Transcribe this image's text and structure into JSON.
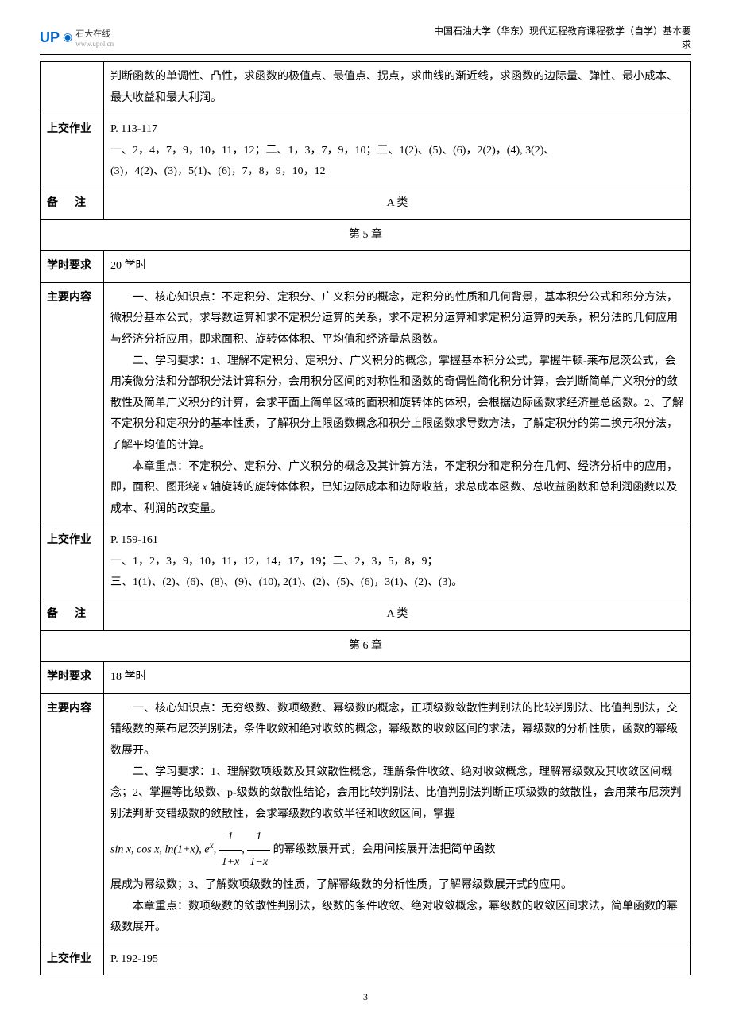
{
  "header": {
    "logo_main": "UP",
    "logo_tag": "石大在线",
    "logo_url": "www.upol.cn",
    "right_line1": "中国石油大学（华东）现代远程教育课程教学（自学）基本要",
    "right_line2": "求"
  },
  "rows": [
    {
      "type": "continuation",
      "content": "判断函数的单调性、凸性，求函数的极值点、最值点、拐点，求曲线的渐近线，求函数的边际量、弹性、最小成本、最大收益和最大利润。"
    },
    {
      "type": "labeled",
      "label": "上交作业",
      "lines": [
        "P. 113-117",
        "一、2，4，7，9，10，11，12；二、1，3，7，9，10；三、1(2)、(5)、(6)，2(2)，(4), 3(2)、",
        "(3)，4(2)、(3)，5(1)、(6)，7，8，9，10，12"
      ]
    },
    {
      "type": "labeled-center",
      "label": "备      注",
      "content": "A 类"
    },
    {
      "type": "chapter",
      "content": "第 5 章"
    },
    {
      "type": "labeled",
      "label": "学时要求",
      "lines": [
        "20 学时"
      ]
    },
    {
      "type": "labeled-paras",
      "label": "主要内容",
      "paras": [
        "一、核心知识点：不定积分、定积分、广义积分的概念，定积分的性质和几何背景，基本积分公式和积分方法，微积分基本公式，求导数运算和求不定积分运算的关系，求不定积分运算和求定积分运算的关系，积分法的几何应用与经济分析应用，即求面积、旋转体体积、平均值和经济量总函数。",
        "二、学习要求：1、理解不定积分、定积分、广义积分的概念，掌握基本积分公式，掌握牛顿-莱布尼茨公式，会用凑微分法和分部积分法计算积分，会用积分区间的对称性和函数的奇偶性简化积分计算，会判断简单广义积分的敛散性及简单广义积分的计算，会求平面上简单区域的面积和旋转体的体积，会根据边际函数求经济量总函数。2、了解不定积分和定积分的基本性质，了解积分上限函数概念和积分上限函数求导数方法，了解定积分的第二换元积分法，了解平均值的计算。",
        "本章重点：不定积分、定积分、广义积分的概念及其计算方法，不定积分和定积分在几何、经济分析中的应用，即，面积、图形绕 x 轴旋转的旋转体体积，已知边际成本和边际收益，求总成本函数、总收益函数和总利润函数以及成本、利润的改变量。"
      ],
      "italic_x": "x"
    },
    {
      "type": "labeled",
      "label": "上交作业",
      "lines": [
        "P. 159-161",
        "一、1，2，3，9，10，11，12，14，17，19；二、2，3，5，8，9；",
        "三、1(1)、(2)、(6)、(8)、(9)、(10), 2(1)、(2)、(5)、(6)，3(1)、(2)、(3)。"
      ]
    },
    {
      "type": "labeled-center",
      "label": "备      注",
      "content": "A 类"
    },
    {
      "type": "chapter",
      "content": "第 6 章"
    },
    {
      "type": "labeled",
      "label": "学时要求",
      "lines": [
        "18 学时"
      ]
    },
    {
      "type": "labeled-formula",
      "label": "主要内容",
      "para1": "一、核心知识点：无穷级数、数项级数、幂级数的概念，正项级数敛散性判别法的比较判别法、比值判别法，交错级数的莱布尼茨判别法，条件收敛和绝对收敛的概念，幂级数的收敛区间的求法，幂级数的分析性质，函数的幂级数展开。",
      "para2": "二、学习要求：1、理解数项级数及其敛散性概念，理解条件收敛、绝对收敛概念，理解幂级数及其收敛区间概念；2、掌握等比级数、p-级数的敛散性结论，会用比较判别法、比值判别法判断正项级数的敛散性，会用莱布尼茨判别法判断交错级数的敛散性，会求幂级数的收敛半径和收敛区间，掌握",
      "formula_prefix": "sin x, cos x, ln(1+x), e",
      "formula_sup": "x",
      "formula_mid": ", ",
      "frac1_num": "1",
      "frac1_den": "1+x",
      "frac2_num": "1",
      "frac2_den": "1−x",
      "formula_after": " 的幂级数展开式，会用间接展开法把简单函数",
      "para3_cont": "展成为幂级数；3、了解数项级数的性质，了解幂级数的分析性质，了解幂级数展开式的应用。",
      "para4": "本章重点：数项级数的敛散性判别法，级数的条件收敛、绝对收敛概念，幂级数的收敛区间求法，简单函数的幂级数展开。"
    },
    {
      "type": "labeled",
      "label": "上交作业",
      "lines": [
        "P. 192-195"
      ]
    }
  ],
  "page_number": "3"
}
